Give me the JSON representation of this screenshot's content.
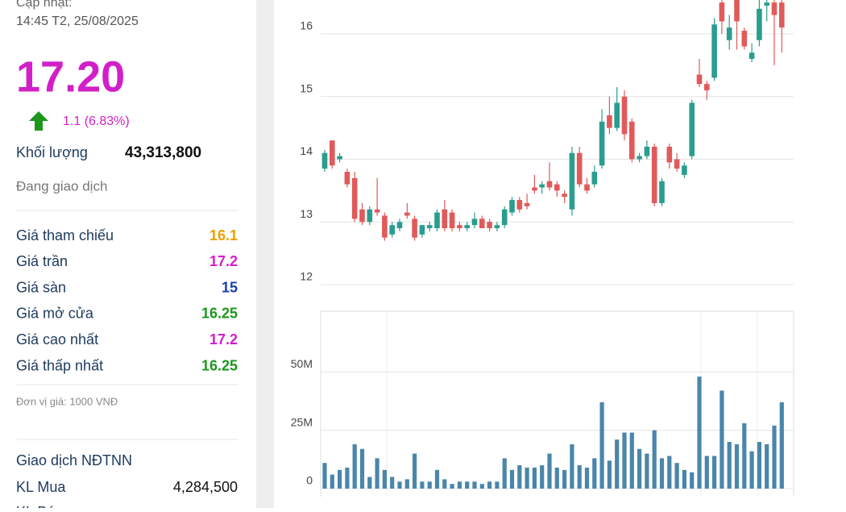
{
  "sidebar": {
    "update_label": "Cập nhật:",
    "update_time": "14:45 T2, 25/08/2025",
    "price": "17.20",
    "change": "1.1 (6.83%)",
    "volume_label": "Khối lượng",
    "volume": "43,313,800",
    "status": "Đang giao dịch",
    "rows": [
      {
        "label": "Giá tham chiếu",
        "value": "16.1",
        "color": "#e8a000"
      },
      {
        "label": "Giá trần",
        "value": "17.2",
        "color": "#d21fc8"
      },
      {
        "label": "Giá sàn",
        "value": "15",
        "color": "#1b3fae"
      },
      {
        "label": "Giá mở cửa",
        "value": "16.25",
        "color": "#1e961e"
      },
      {
        "label": "Giá cao nhất",
        "value": "17.2",
        "color": "#d21fc8"
      },
      {
        "label": "Giá thấp nhất",
        "value": "16.25",
        "color": "#1e961e"
      }
    ],
    "unit_note": "Đơn vị giá: 1000 VNĐ",
    "foreign_title": "Giao dịch NĐTNN",
    "foreign_rows": [
      {
        "label": "KL Mua",
        "value": "4,284,500"
      },
      {
        "label": "KL Bán"
      }
    ]
  },
  "chart_data": [
    {
      "type": "candlestick",
      "open": [
        13.85,
        14.3,
        14.0,
        13.8,
        13.7,
        13.2,
        13.0,
        13.2,
        13.1,
        12.8,
        12.9,
        13.15,
        13.05,
        12.8,
        12.9,
        12.9,
        13.2,
        13.15,
        12.95,
        12.9,
        12.95,
        13.05,
        13.0,
        12.9,
        12.95,
        13.15,
        13.35,
        13.3,
        13.55,
        13.55,
        13.65,
        13.6,
        13.45,
        13.2,
        14.1,
        13.6,
        13.6,
        13.9,
        14.7,
        14.5,
        15.0,
        14.6,
        14.0,
        14.05,
        14.2,
        13.3,
        14.2,
        14.0,
        13.75,
        14.05,
        15.35,
        15.2,
        15.3,
        16.5,
        15.9,
        16.55,
        16.05,
        15.6,
        15.9,
        16.45,
        16.5,
        16.5
      ],
      "high": [
        14.15,
        14.3,
        14.1,
        13.85,
        13.8,
        13.3,
        13.25,
        13.7,
        13.15,
        13.0,
        13.05,
        13.3,
        13.1,
        12.95,
        13.0,
        13.2,
        13.35,
        13.2,
        13.0,
        13.0,
        13.15,
        13.1,
        13.05,
        13.0,
        13.25,
        13.4,
        13.4,
        13.45,
        13.75,
        13.65,
        13.95,
        13.65,
        13.5,
        14.2,
        14.2,
        13.7,
        13.9,
        14.8,
        15.0,
        15.15,
        15.1,
        14.65,
        14.1,
        14.3,
        14.25,
        13.7,
        14.25,
        14.1,
        13.95,
        14.95,
        15.6,
        15.25,
        16.25,
        16.55,
        16.3,
        16.55,
        16.1,
        15.85,
        16.55,
        16.55,
        16.55,
        16.55
      ],
      "low": [
        13.8,
        13.85,
        13.95,
        13.55,
        13.0,
        12.95,
        12.95,
        13.1,
        12.7,
        12.75,
        12.85,
        13.05,
        12.7,
        12.75,
        12.85,
        12.85,
        12.85,
        12.85,
        12.85,
        12.85,
        12.9,
        12.9,
        12.85,
        12.85,
        12.9,
        13.1,
        13.15,
        13.2,
        13.45,
        13.45,
        13.5,
        13.4,
        13.3,
        13.1,
        13.55,
        13.45,
        13.55,
        13.85,
        14.4,
        14.45,
        14.3,
        13.95,
        13.95,
        14.0,
        13.25,
        13.25,
        13.85,
        13.8,
        13.7,
        14.0,
        15.15,
        14.95,
        15.25,
        16.0,
        15.75,
        15.75,
        15.75,
        15.55,
        15.8,
        16.2,
        15.5,
        15.7
      ],
      "close": [
        14.1,
        13.9,
        14.05,
        13.6,
        13.05,
        13.0,
        13.2,
        13.15,
        12.75,
        12.95,
        13.0,
        13.1,
        12.75,
        12.95,
        12.95,
        13.15,
        12.9,
        12.9,
        12.9,
        12.95,
        13.05,
        12.9,
        12.9,
        12.95,
        13.2,
        13.35,
        13.2,
        13.25,
        13.5,
        13.6,
        13.55,
        13.5,
        13.4,
        14.1,
        13.6,
        13.5,
        13.8,
        14.6,
        14.5,
        14.9,
        14.4,
        14.0,
        14.05,
        14.2,
        13.3,
        13.65,
        13.95,
        13.85,
        13.9,
        14.9,
        15.2,
        15.1,
        16.15,
        16.2,
        16.1,
        16.2,
        15.8,
        15.7,
        16.4,
        16.5,
        16.3,
        16.1
      ],
      "up_color": "#2a9d8f",
      "down_color": "#e05a5a",
      "ylim": [
        12,
        16.54
      ],
      "yticks": [
        12,
        13,
        14,
        15,
        16
      ],
      "grid": true
    },
    {
      "type": "bar",
      "values": [
        11,
        6,
        8,
        9,
        19,
        17,
        5,
        13,
        8,
        5,
        3,
        4,
        15,
        3,
        3,
        8,
        4,
        2,
        3,
        3,
        3,
        2,
        3,
        3,
        13,
        8,
        10,
        9,
        9,
        10,
        15,
        9,
        8,
        19,
        10,
        9,
        13,
        37,
        12,
        21,
        24,
        24,
        17,
        15,
        25,
        13,
        14,
        11,
        8,
        7,
        48,
        14,
        14,
        42,
        20,
        19,
        28,
        16,
        20,
        19,
        27,
        37
      ],
      "color": "#4a86aa",
      "ylim": [
        0,
        76
      ],
      "yticks": [
        0,
        {
          "value": 25,
          "label": "25M"
        },
        {
          "value": 50,
          "label": "50M"
        }
      ],
      "grid": true
    }
  ]
}
